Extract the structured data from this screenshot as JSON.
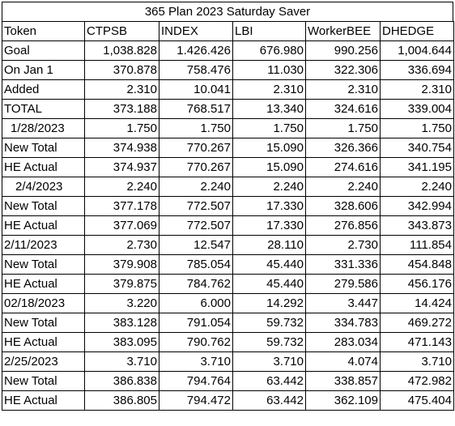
{
  "title": "365 Plan 2023 Saturday Saver",
  "columns": [
    "Token",
    "CTPSB",
    "INDEX",
    "LBI",
    "WorkerBEE",
    "DHEDGE"
  ],
  "rows": [
    {
      "label": "Goal",
      "style": "lbl",
      "values": [
        "1,038.828",
        "1.426.426",
        "676.980",
        "990.256",
        "1,004.644"
      ]
    },
    {
      "label": "On Jan 1",
      "style": "lbl",
      "values": [
        "370.878",
        "758.476",
        "11.030",
        "322.306",
        "336.694"
      ]
    },
    {
      "label": "Added",
      "style": "lbl",
      "values": [
        "2.310",
        "10.041",
        "2.310",
        "2.310",
        "2.310"
      ]
    },
    {
      "label": "TOTAL",
      "style": "lbl",
      "values": [
        "373.188",
        "768.517",
        "13.340",
        "324.616",
        "339.004"
      ]
    },
    {
      "label": "1/28/2023",
      "style": "indent",
      "values": [
        "1.750",
        "1.750",
        "1.750",
        "1.750",
        "1.750"
      ]
    },
    {
      "label": "New Total",
      "style": "lbl",
      "values": [
        "374.938",
        "770.267",
        "15.090",
        "326.366",
        "340.754"
      ]
    },
    {
      "label": "HE Actual",
      "style": "lbl",
      "values": [
        "374.937",
        "770.267",
        "15.090",
        "274.616",
        "341.195"
      ]
    },
    {
      "label": "2/4/2023",
      "style": "indent2",
      "values": [
        "2.240",
        "2.240",
        "2.240",
        "2.240",
        "2.240"
      ]
    },
    {
      "label": "New Total",
      "style": "lbl",
      "values": [
        "377.178",
        "772.507",
        "17.330",
        "328.606",
        "342.994"
      ]
    },
    {
      "label": "HE Actual",
      "style": "lbl",
      "values": [
        "377.069",
        "772.507",
        "17.330",
        "276.856",
        "343.873"
      ]
    },
    {
      "label": "2/11/2023",
      "style": "lbl",
      "values": [
        "2.730",
        "12.547",
        "28.110",
        "2.730",
        "111.854"
      ]
    },
    {
      "label": "New Total",
      "style": "lbl",
      "values": [
        "379.908",
        "785.054",
        "45.440",
        "331.336",
        "454.848"
      ]
    },
    {
      "label": "HE Actual",
      "style": "lbl",
      "values": [
        "379.875",
        "784.762",
        "45.440",
        "279.586",
        "456.176"
      ]
    },
    {
      "label": "02/18/2023",
      "style": "lbl",
      "values": [
        "3.220",
        "6.000",
        "14.292",
        "3.447",
        "14.424"
      ]
    },
    {
      "label": "New Total",
      "style": "lbl",
      "values": [
        "383.128",
        "791.054",
        "59.732",
        "334.783",
        "469.272"
      ]
    },
    {
      "label": "HE Actual",
      "style": "lbl",
      "values": [
        "383.095",
        "790.762",
        "59.732",
        "283.034",
        "471.143"
      ]
    },
    {
      "label": "2/25/2023",
      "style": "lbl",
      "values": [
        "3.710",
        "3.710",
        "3.710",
        "4.074",
        "3.710"
      ]
    },
    {
      "label": "New Total",
      "style": "lbl",
      "values": [
        "386.838",
        "794.764",
        "63.442",
        "338.857",
        "472.982"
      ]
    },
    {
      "label": "HE Actual",
      "style": "lbl",
      "values": [
        "386.805",
        "794.472",
        "63.442",
        "362.109",
        "475.404"
      ]
    }
  ]
}
